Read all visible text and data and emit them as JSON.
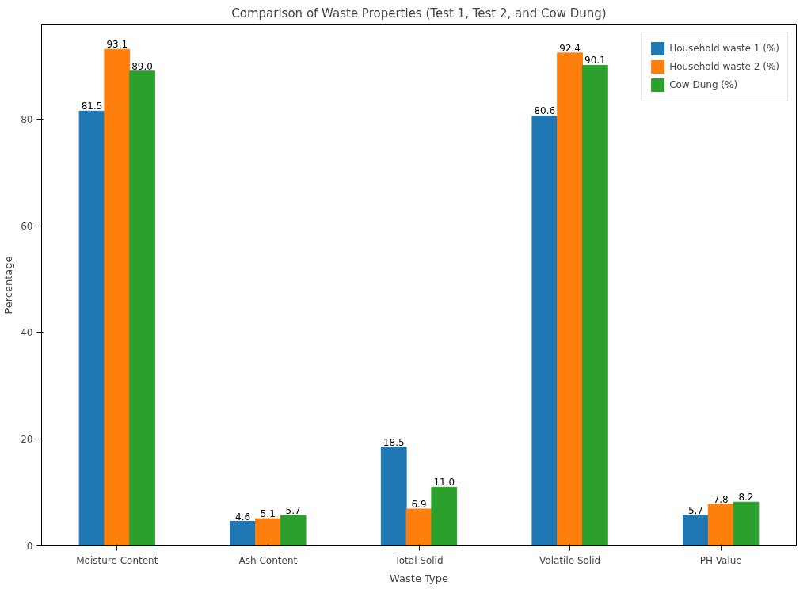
{
  "chart_data": {
    "type": "bar",
    "title": "Comparison of Waste Properties (Test 1, Test 2, and Cow Dung)",
    "xlabel": "Waste Type",
    "ylabel": "Percentage",
    "categories": [
      "Moisture Content",
      "Ash Content",
      "Total Solid",
      "Volatile Solid",
      "PH Value"
    ],
    "series": [
      {
        "name": "Household waste 1 (%)",
        "color": "#1f77b4",
        "values": [
          81.5,
          4.6,
          18.5,
          80.6,
          5.7
        ],
        "value_labels": [
          "81.5",
          "4.6",
          "18.5",
          "80.6",
          "5.7"
        ]
      },
      {
        "name": "Household waste 2 (%)",
        "color": "#ff7f0e",
        "values": [
          93.1,
          5.1,
          6.9,
          92.4,
          7.8
        ],
        "value_labels": [
          "93.1",
          "5.1",
          "6.9",
          "92.4",
          "7.8"
        ]
      },
      {
        "name": "Cow Dung (%)",
        "color": "#2ca02c",
        "values": [
          89.0,
          5.7,
          11.0,
          90.1,
          8.2
        ],
        "value_labels": [
          "89.0",
          "5.7",
          "11.0",
          "90.1",
          "8.2"
        ]
      }
    ],
    "ylim": [
      0,
      97.8
    ],
    "yticks": [
      0,
      20,
      40,
      60,
      80
    ],
    "grid": false,
    "legend": "top right"
  }
}
